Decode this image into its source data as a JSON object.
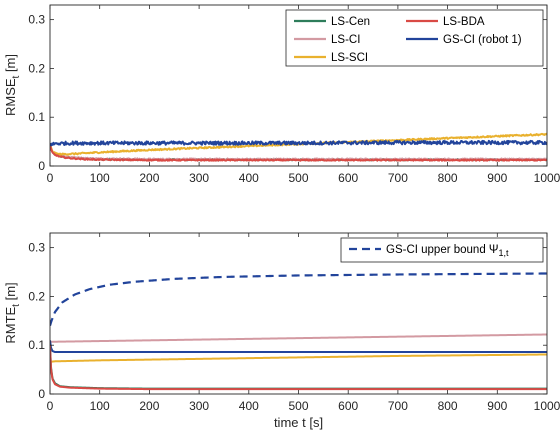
{
  "chart_data": [
    {
      "type": "line",
      "ylabel": "RMSE",
      "ylabel_sub": "t",
      "ylabel_unit": " [m]",
      "xlabel": "",
      "xlim": [
        0,
        1000
      ],
      "ylim": [
        0,
        0.33
      ],
      "xticks": [
        0,
        100,
        200,
        300,
        400,
        500,
        600,
        700,
        800,
        900,
        1000
      ],
      "yticks": [
        0,
        0.1,
        0.2,
        0.3
      ],
      "legend_placement": "top-right",
      "series": [
        {
          "name": "LS-Cen",
          "color": "#2e7d5b",
          "dash": "solid",
          "noise": 0.0015,
          "x": [
            0,
            2,
            5,
            10,
            20,
            40,
            70,
            100,
            200,
            400,
            600,
            800,
            1000
          ],
          "y": [
            0.045,
            0.035,
            0.028,
            0.024,
            0.02,
            0.017,
            0.015,
            0.014,
            0.013,
            0.013,
            0.013,
            0.013,
            0.013
          ]
        },
        {
          "name": "LS-CI",
          "color": "#d39aa2",
          "dash": "solid",
          "noise": 0.0015,
          "x": [
            0,
            2,
            5,
            10,
            20,
            40,
            70,
            100,
            200,
            400,
            600,
            800,
            1000
          ],
          "y": [
            0.045,
            0.036,
            0.029,
            0.025,
            0.021,
            0.018,
            0.016,
            0.015,
            0.014,
            0.014,
            0.014,
            0.014,
            0.014
          ]
        },
        {
          "name": "LS-SCI",
          "color": "#e9b12e",
          "dash": "solid",
          "noise": 0.0015,
          "x": [
            0,
            2,
            5,
            10,
            20,
            50,
            100,
            200,
            300,
            400,
            500,
            600,
            700,
            800,
            900,
            1000
          ],
          "y": [
            0.045,
            0.037,
            0.03,
            0.026,
            0.024,
            0.025,
            0.028,
            0.033,
            0.037,
            0.041,
            0.045,
            0.049,
            0.053,
            0.057,
            0.061,
            0.065
          ]
        },
        {
          "name": "LS-BDA",
          "color": "#d94a45",
          "dash": "solid",
          "noise": 0.0012,
          "x": [
            0,
            2,
            5,
            10,
            20,
            40,
            70,
            100,
            200,
            400,
            600,
            800,
            1000
          ],
          "y": [
            0.045,
            0.034,
            0.027,
            0.023,
            0.019,
            0.016,
            0.014,
            0.013,
            0.012,
            0.012,
            0.012,
            0.012,
            0.012
          ]
        },
        {
          "name": "GS-CI (robot 1)",
          "color": "#22449b",
          "dash": "solid",
          "noise": 0.0035,
          "x": [
            0,
            5,
            10,
            50,
            100,
            300,
            500,
            700,
            1000
          ],
          "y": [
            0.046,
            0.044,
            0.046,
            0.047,
            0.047,
            0.047,
            0.047,
            0.048,
            0.048
          ]
        }
      ]
    },
    {
      "type": "line",
      "ylabel": "RMTE",
      "ylabel_sub": "t",
      "ylabel_unit": " [m]",
      "xlabel": "time t [s]",
      "xlim": [
        0,
        1000
      ],
      "ylim": [
        0,
        0.33
      ],
      "xticks": [
        0,
        100,
        200,
        300,
        400,
        500,
        600,
        700,
        800,
        900,
        1000
      ],
      "yticks": [
        0,
        0.1,
        0.2,
        0.3
      ],
      "legend_placement": "top-right",
      "series": [
        {
          "name": "GS-CI upper bound Ψ",
          "name_sub": "1,t",
          "color": "#22449b",
          "dash": "dashed",
          "noise": 0,
          "legend": true,
          "x": [
            0,
            3,
            10,
            25,
            50,
            80,
            120,
            170,
            250,
            350,
            500,
            700,
            1000
          ],
          "y": [
            0.14,
            0.15,
            0.168,
            0.188,
            0.204,
            0.215,
            0.224,
            0.23,
            0.236,
            0.24,
            0.243,
            0.245,
            0.247
          ]
        },
        {
          "name": "LS-CI",
          "color": "#d39aa2",
          "dash": "solid",
          "noise": 0,
          "legend": false,
          "x": [
            0,
            1000
          ],
          "y": [
            0.107,
            0.122
          ]
        },
        {
          "name": "GS-CI (robot 1)",
          "color": "#22449b",
          "dash": "solid",
          "noise": 0,
          "legend": false,
          "x": [
            0,
            2,
            5,
            10,
            20,
            100,
            1000
          ],
          "y": [
            0.11,
            0.095,
            0.088,
            0.086,
            0.086,
            0.086,
            0.086
          ]
        },
        {
          "name": "LS-SCI",
          "color": "#e9b12e",
          "dash": "solid",
          "noise": 0,
          "legend": false,
          "x": [
            0,
            10,
            100,
            300,
            500,
            700,
            1000
          ],
          "y": [
            0.066,
            0.067,
            0.069,
            0.072,
            0.075,
            0.078,
            0.081
          ]
        },
        {
          "name": "LS-Cen",
          "color": "#2e7d5b",
          "dash": "solid",
          "noise": 0,
          "legend": false,
          "x": [
            0,
            2,
            5,
            10,
            20,
            40,
            70,
            100,
            200,
            1000
          ],
          "y": [
            0.1,
            0.055,
            0.032,
            0.022,
            0.016,
            0.014,
            0.013,
            0.012,
            0.011,
            0.011
          ]
        },
        {
          "name": "LS-BDA",
          "color": "#d94a45",
          "dash": "solid",
          "noise": 0,
          "legend": false,
          "x": [
            0,
            2,
            5,
            10,
            20,
            40,
            70,
            100,
            200,
            1000
          ],
          "y": [
            0.1,
            0.052,
            0.03,
            0.02,
            0.015,
            0.013,
            0.012,
            0.011,
            0.01,
            0.01
          ]
        }
      ]
    }
  ]
}
